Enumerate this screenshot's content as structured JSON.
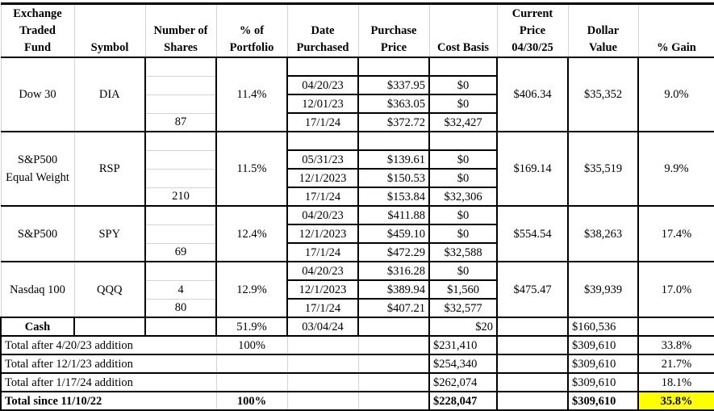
{
  "headers": [
    "Exchange\nTraded\nFund",
    "Symbol",
    "Number of\nShares",
    "% of\nPortfolio",
    "Date\nPurchased",
    "Purchase\nPrice",
    "Cost Basis",
    "Current\nPrice\n04/30/25",
    "Dollar\nValue",
    "% Gain"
  ],
  "funds": [
    {
      "name": "Dow 30",
      "symbol": "DIA",
      "pct": "11.4%",
      "current_price": "$406.34",
      "dollar_value": "$35,352",
      "gain": "9.0%",
      "rows": [
        {
          "shares": "",
          "date": "",
          "price": "",
          "cost": ""
        },
        {
          "shares": "",
          "date": "04/20/23",
          "price": "$337.95",
          "cost": "$0"
        },
        {
          "shares": "",
          "date": "12/01/23",
          "price": "$363.05",
          "cost": "$0"
        },
        {
          "shares": "87",
          "date": "17/1/24",
          "price": "$372.72",
          "cost": "$32,427"
        }
      ]
    },
    {
      "name": "S&P500\nEqual Weight",
      "symbol": "RSP",
      "pct": "11.5%",
      "current_price": "$169.14",
      "dollar_value": "$35,519",
      "gain": "9.9%",
      "rows": [
        {
          "shares": "",
          "date": "",
          "price": "",
          "cost": ""
        },
        {
          "shares": "",
          "date": "05/31/23",
          "price": "$139.61",
          "cost": "$0"
        },
        {
          "shares": "",
          "date": "12/1/2023",
          "price": "$150.53",
          "cost": "$0"
        },
        {
          "shares": "210",
          "date": "17/1/24",
          "price": "$153.84",
          "cost": "$32,306"
        }
      ]
    },
    {
      "name": "S&P500",
      "symbol": "SPY",
      "pct": "12.4%",
      "current_price": "$554.54",
      "dollar_value": "$38,263",
      "gain": "17.4%",
      "rows": [
        {
          "shares": "",
          "date": "04/20/23",
          "price": "$411.88",
          "cost": "$0"
        },
        {
          "shares": "",
          "date": "12/1/2023",
          "price": "$459.10",
          "cost": "$0"
        },
        {
          "shares": "69",
          "date": "17/1/24",
          "price": "$472.29",
          "cost": "$32,588"
        }
      ]
    },
    {
      "name": "Nasdaq 100",
      "symbol": "QQQ",
      "pct": "12.9%",
      "current_price": "$475.47",
      "dollar_value": "$39,939",
      "gain": "17.0%",
      "rows": [
        {
          "shares": "",
          "date": "04/20/23",
          "price": "$316.28",
          "cost": "$0"
        },
        {
          "shares": "4",
          "date": "12/1/2023",
          "price": "$389.94",
          "cost": "$1,560"
        },
        {
          "shares": "80",
          "date": "17/1/24",
          "price": "$407.21",
          "cost": "$32,577"
        }
      ]
    }
  ],
  "cash": {
    "label": "Cash",
    "pct": "51.9%",
    "date": "03/04/24",
    "cost": "$20",
    "dollar_value": "$160,536"
  },
  "totals": [
    {
      "label": "Total after  4/20/23 addition",
      "pct": "100%",
      "cost": "$231,410",
      "value": "$309,610",
      "gain": "33.8%"
    },
    {
      "label": "Total after 12/1/23 addition",
      "pct": "",
      "cost": "$254,340",
      "value": "$309,610",
      "gain": "21.7%"
    },
    {
      "label": "Total after 1/17/24 addition",
      "pct": "",
      "cost": "$262,074",
      "value": "$309,610",
      "gain": "18.1%"
    },
    {
      "label": "Total since 11/10/22",
      "pct": "100%",
      "cost": "$228,047",
      "value": "$309,610",
      "gain": "35.8%",
      "bold": true,
      "highlight": "#ffff00"
    }
  ]
}
